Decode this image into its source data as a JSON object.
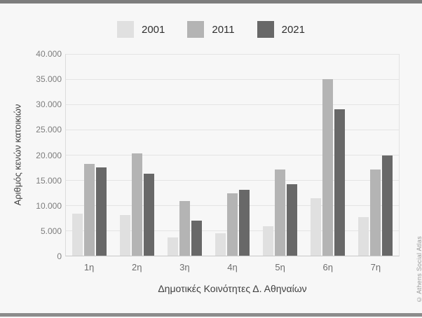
{
  "page": {
    "background": "#f7f7f7",
    "top_bar_color": "#7d7d7d",
    "bottom_bar_color": "#8c8c8c"
  },
  "watermark": "© Athens Social Atlas",
  "chart_data": {
    "type": "bar",
    "title": "",
    "categories": [
      "1η",
      "2η",
      "3η",
      "4η",
      "5η",
      "6η",
      "7η"
    ],
    "series": [
      {
        "name": "2001",
        "color": "#e0e0e0",
        "values": [
          8400,
          8100,
          3600,
          4400,
          5900,
          11400,
          7700
        ]
      },
      {
        "name": "2011",
        "color": "#b4b4b4",
        "values": [
          18200,
          20300,
          10800,
          12300,
          17100,
          35000,
          17100
        ]
      },
      {
        "name": "2021",
        "color": "#686868",
        "values": [
          17500,
          16300,
          6900,
          13000,
          14100,
          29000,
          19800
        ]
      }
    ],
    "xlabel": "Δημοτικές Κοινότητες Δ. Αθηναίων",
    "ylabel": "Αριθμός κενών κατοικιών",
    "ylim": [
      0,
      40000
    ],
    "ytick_step": 5000,
    "ytick_labels": [
      "0",
      "5.000",
      "10.000",
      "15.000",
      "20.000",
      "25.000",
      "30.000",
      "35.000",
      "40.000"
    ],
    "grid": "horizontal",
    "legend_position": "top"
  }
}
